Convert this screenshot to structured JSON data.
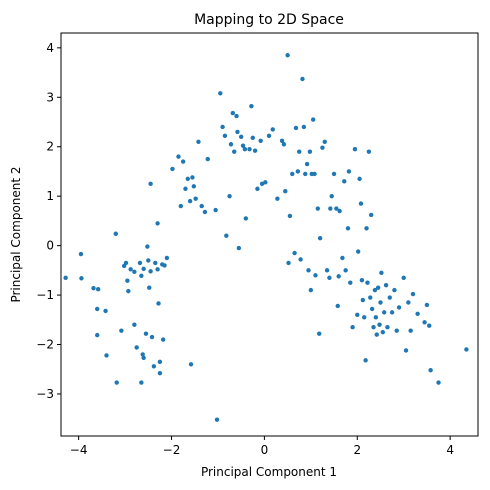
{
  "chart_data": {
    "type": "scatter",
    "title": "Mapping to 2D Space",
    "xlabel": "Principal Component 1",
    "ylabel": "Principal Component 2",
    "xlim": [
      -4.38,
      4.6
    ],
    "ylim": [
      -3.85,
      4.3
    ],
    "xticks": [
      -4,
      -2,
      0,
      2,
      4
    ],
    "yticks": [
      -3,
      -2,
      -1,
      0,
      1,
      2,
      3,
      4
    ],
    "grid": false,
    "legend": "none",
    "marker_color": "#1f77b4",
    "series": [
      {
        "points": [
          [
            -4.28,
            -0.65
          ],
          [
            -3.95,
            -0.17
          ],
          [
            -3.94,
            -0.66
          ],
          [
            -3.68,
            -0.86
          ],
          [
            -3.58,
            -0.88
          ],
          [
            -3.6,
            -1.28
          ],
          [
            -3.42,
            -1.32
          ],
          [
            -3.6,
            -1.81
          ],
          [
            -3.4,
            -2.22
          ],
          [
            -3.2,
            0.24
          ],
          [
            -3.18,
            -2.77
          ],
          [
            -3.08,
            -1.72
          ],
          [
            -3.02,
            -0.41
          ],
          [
            -2.98,
            -0.35
          ],
          [
            -2.95,
            -0.71
          ],
          [
            -2.93,
            -0.92
          ],
          [
            -2.88,
            -0.48
          ],
          [
            -2.8,
            -0.53
          ],
          [
            -2.8,
            -1.6
          ],
          [
            -2.75,
            -2.06
          ],
          [
            -2.68,
            -0.35
          ],
          [
            -2.65,
            -0.61
          ],
          [
            -2.62,
            -2.2
          ],
          [
            -2.6,
            -0.47
          ],
          [
            -2.65,
            -2.77
          ],
          [
            -2.6,
            -2.27
          ],
          [
            -2.55,
            -1.78
          ],
          [
            -2.5,
            -0.3
          ],
          [
            -2.48,
            -0.85
          ],
          [
            -2.45,
            -0.52
          ],
          [
            -2.42,
            -1.85
          ],
          [
            -2.38,
            -2.44
          ],
          [
            -2.35,
            -0.35
          ],
          [
            -2.3,
            -0.48
          ],
          [
            -2.28,
            -1.17
          ],
          [
            -2.25,
            -2.58
          ],
          [
            -2.25,
            -2.35
          ],
          [
            -2.2,
            -0.38
          ],
          [
            -2.18,
            -1.9
          ],
          [
            -2.15,
            -0.4
          ],
          [
            -2.52,
            -0.02
          ],
          [
            -2.45,
            1.25
          ],
          [
            -2.3,
            0.45
          ],
          [
            -2.1,
            -0.25
          ],
          [
            -1.98,
            1.55
          ],
          [
            -1.85,
            1.8
          ],
          [
            -1.8,
            0.8
          ],
          [
            -1.75,
            1.7
          ],
          [
            -1.7,
            1.15
          ],
          [
            -1.65,
            1.35
          ],
          [
            -1.6,
            0.9
          ],
          [
            -1.58,
            -2.4
          ],
          [
            -1.55,
            1.38
          ],
          [
            -1.52,
            1.2
          ],
          [
            -1.48,
            0.95
          ],
          [
            -1.42,
            2.1
          ],
          [
            -1.35,
            0.8
          ],
          [
            -1.28,
            0.68
          ],
          [
            -1.22,
            1.75
          ],
          [
            -1.05,
            0.72
          ],
          [
            -1.02,
            -3.52
          ],
          [
            -0.95,
            3.08
          ],
          [
            -0.9,
            2.4
          ],
          [
            -0.85,
            2.22
          ],
          [
            -0.82,
            0.2
          ],
          [
            -0.75,
            1.0
          ],
          [
            -0.72,
            2.05
          ],
          [
            -0.68,
            2.68
          ],
          [
            -0.65,
            1.9
          ],
          [
            -0.6,
            2.62
          ],
          [
            -0.58,
            2.3
          ],
          [
            -0.55,
            -0.05
          ],
          [
            -0.5,
            2.2
          ],
          [
            -0.46,
            2.02
          ],
          [
            -0.42,
            1.95
          ],
          [
            -0.4,
            0.55
          ],
          [
            -0.32,
            1.95
          ],
          [
            -0.28,
            2.82
          ],
          [
            -0.25,
            2.18
          ],
          [
            -0.2,
            1.92
          ],
          [
            -0.15,
            1.15
          ],
          [
            -0.05,
            1.25
          ],
          [
            -0.08,
            2.12
          ],
          [
            0.02,
            1.28
          ],
          [
            0.1,
            2.22
          ],
          [
            0.18,
            2.35
          ],
          [
            0.28,
            0.95
          ],
          [
            0.38,
            2.12
          ],
          [
            0.42,
            2.05
          ],
          [
            0.45,
            1.1
          ],
          [
            0.5,
            3.85
          ],
          [
            0.52,
            -0.35
          ],
          [
            0.55,
            0.6
          ],
          [
            0.6,
            1.45
          ],
          [
            0.65,
            -0.15
          ],
          [
            0.68,
            2.38
          ],
          [
            0.72,
            1.5
          ],
          [
            0.75,
            1.9
          ],
          [
            0.78,
            -0.28
          ],
          [
            0.82,
            3.37
          ],
          [
            0.85,
            2.4
          ],
          [
            0.88,
            1.45
          ],
          [
            0.92,
            1.65
          ],
          [
            0.95,
            -0.5
          ],
          [
            0.98,
            1.9
          ],
          [
            1.02,
            1.45
          ],
          [
            1.0,
            -0.9
          ],
          [
            1.05,
            2.55
          ],
          [
            1.08,
            1.45
          ],
          [
            1.1,
            -0.6
          ],
          [
            1.15,
            0.75
          ],
          [
            1.18,
            -1.78
          ],
          [
            1.2,
            0.15
          ],
          [
            1.25,
            1.98
          ],
          [
            1.3,
            2.1
          ],
          [
            1.35,
            -0.5
          ],
          [
            1.4,
            -0.65
          ],
          [
            1.42,
            0.75
          ],
          [
            1.45,
            1.0
          ],
          [
            1.5,
            1.45
          ],
          [
            1.55,
            0.75
          ],
          [
            1.58,
            -1.22
          ],
          [
            1.6,
            -0.62
          ],
          [
            1.62,
            0.7
          ],
          [
            1.68,
            -0.25
          ],
          [
            1.72,
            1.3
          ],
          [
            1.75,
            -0.5
          ],
          [
            1.8,
            0.35
          ],
          [
            1.82,
            1.5
          ],
          [
            1.85,
            -0.75
          ],
          [
            1.9,
            -1.65
          ],
          [
            1.95,
            1.95
          ],
          [
            2.0,
            -1.4
          ],
          [
            2.02,
            -0.12
          ],
          [
            2.05,
            1.35
          ],
          [
            2.08,
            0.85
          ],
          [
            2.1,
            -0.7
          ],
          [
            2.12,
            -1.1
          ],
          [
            2.15,
            -1.45
          ],
          [
            2.18,
            -2.32
          ],
          [
            2.2,
            0.35
          ],
          [
            2.22,
            -0.75
          ],
          [
            2.25,
            1.9
          ],
          [
            2.28,
            -1.05
          ],
          [
            2.3,
            0.62
          ],
          [
            2.32,
            -1.28
          ],
          [
            2.35,
            -1.65
          ],
          [
            2.38,
            -0.9
          ],
          [
            2.4,
            -1.45
          ],
          [
            2.42,
            -1.8
          ],
          [
            2.45,
            -0.85
          ],
          [
            2.48,
            -1.6
          ],
          [
            2.5,
            -1.15
          ],
          [
            2.52,
            -0.55
          ],
          [
            2.55,
            -1.75
          ],
          [
            2.58,
            -1.35
          ],
          [
            2.62,
            -0.8
          ],
          [
            2.65,
            -1.65
          ],
          [
            2.7,
            -1.05
          ],
          [
            2.75,
            -1.35
          ],
          [
            2.8,
            -0.9
          ],
          [
            2.85,
            -1.72
          ],
          [
            2.9,
            -1.25
          ],
          [
            3.0,
            -0.65
          ],
          [
            3.05,
            -2.12
          ],
          [
            3.1,
            -1.15
          ],
          [
            3.15,
            -1.72
          ],
          [
            3.2,
            -0.98
          ],
          [
            3.3,
            -1.38
          ],
          [
            3.45,
            -1.55
          ],
          [
            3.5,
            -1.2
          ],
          [
            3.55,
            -1.62
          ],
          [
            3.58,
            -2.52
          ],
          [
            3.75,
            -2.77
          ],
          [
            4.35,
            -2.1
          ]
        ]
      }
    ]
  }
}
